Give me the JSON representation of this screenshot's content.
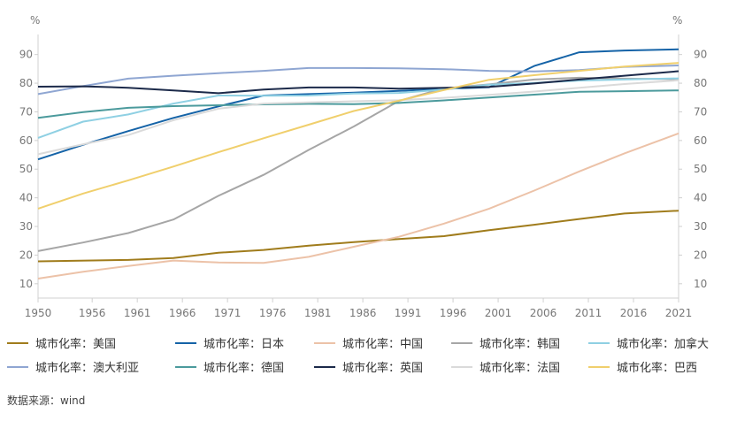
{
  "chart_data": {
    "type": "line",
    "y_unit_left": "%",
    "y_unit_right": "%",
    "ylim": [
      5,
      97
    ],
    "xlim": [
      1950,
      2021
    ],
    "x_ticks": [
      1950,
      1956,
      1961,
      1966,
      1971,
      1976,
      1981,
      1986,
      1991,
      1996,
      2001,
      2006,
      2011,
      2016,
      2021
    ],
    "y_ticks": [
      10,
      20,
      30,
      40,
      50,
      60,
      70,
      80,
      90
    ],
    "grid": false,
    "legend_position": "bottom",
    "source": "数据来源：wind",
    "series": [
      {
        "name": "城市化率：美国",
        "color": "#a07c1c",
        "points": [
          [
            1950,
            17.8
          ],
          [
            1960,
            18.3
          ],
          [
            1965,
            19.0
          ],
          [
            1970,
            20.8
          ],
          [
            1975,
            21.8
          ],
          [
            1980,
            23.3
          ],
          [
            1985,
            24.5
          ],
          [
            1990,
            25.6
          ],
          [
            1995,
            26.6
          ],
          [
            2000,
            28.7
          ],
          [
            2005,
            30.6
          ],
          [
            2010,
            32.6
          ],
          [
            2015,
            34.5
          ],
          [
            2021,
            35.5
          ]
        ]
      },
      {
        "name": "城市化率：日本",
        "color": "#1563a7",
        "points": [
          [
            1950,
            53.4
          ],
          [
            1955,
            58.5
          ],
          [
            1960,
            63.3
          ],
          [
            1965,
            67.9
          ],
          [
            1970,
            71.9
          ],
          [
            1975,
            75.7
          ],
          [
            1980,
            76.2
          ],
          [
            1985,
            76.7
          ],
          [
            1990,
            77.3
          ],
          [
            1995,
            78.0
          ],
          [
            2000,
            78.6
          ],
          [
            2005,
            86.0
          ],
          [
            2010,
            90.8
          ],
          [
            2015,
            91.4
          ],
          [
            2021,
            91.8
          ]
        ]
      },
      {
        "name": "城市化率：中国",
        "color": "#ecc2a8",
        "points": [
          [
            1950,
            11.8
          ],
          [
            1955,
            14.2
          ],
          [
            1960,
            16.2
          ],
          [
            1965,
            18.1
          ],
          [
            1970,
            17.4
          ],
          [
            1975,
            17.3
          ],
          [
            1980,
            19.4
          ],
          [
            1985,
            22.9
          ],
          [
            1990,
            26.4
          ],
          [
            1995,
            31.0
          ],
          [
            2000,
            36.2
          ],
          [
            2005,
            42.5
          ],
          [
            2010,
            49.2
          ],
          [
            2015,
            55.5
          ],
          [
            2021,
            62.5
          ]
        ]
      },
      {
        "name": "城市化率：韩国",
        "color": "#a6a6a6",
        "points": [
          [
            1950,
            21.4
          ],
          [
            1955,
            24.4
          ],
          [
            1960,
            27.7
          ],
          [
            1965,
            32.4
          ],
          [
            1970,
            40.7
          ],
          [
            1975,
            48.0
          ],
          [
            1980,
            56.7
          ],
          [
            1985,
            64.9
          ],
          [
            1990,
            73.8
          ],
          [
            1995,
            78.2
          ],
          [
            2000,
            79.6
          ],
          [
            2005,
            81.3
          ],
          [
            2010,
            81.9
          ],
          [
            2015,
            81.6
          ],
          [
            2021,
            81.4
          ]
        ]
      },
      {
        "name": "城市化率：加拿大",
        "color": "#8fd0e3",
        "points": [
          [
            1950,
            60.9
          ],
          [
            1955,
            66.6
          ],
          [
            1960,
            69.1
          ],
          [
            1965,
            72.9
          ],
          [
            1970,
            75.7
          ],
          [
            1975,
            75.6
          ],
          [
            1980,
            75.7
          ],
          [
            1985,
            76.4
          ],
          [
            1990,
            76.6
          ],
          [
            1995,
            77.8
          ],
          [
            2000,
            79.5
          ],
          [
            2005,
            80.1
          ],
          [
            2010,
            80.9
          ],
          [
            2015,
            81.3
          ],
          [
            2021,
            81.7
          ]
        ]
      },
      {
        "name": "城市化率：澳大利亚",
        "color": "#8fa6d2",
        "points": [
          [
            1950,
            76.2
          ],
          [
            1955,
            79.0
          ],
          [
            1960,
            81.6
          ],
          [
            1965,
            82.6
          ],
          [
            1970,
            83.5
          ],
          [
            1975,
            84.3
          ],
          [
            1980,
            85.3
          ],
          [
            1985,
            85.3
          ],
          [
            1990,
            85.2
          ],
          [
            1995,
            84.9
          ],
          [
            2000,
            84.3
          ],
          [
            2005,
            84.1
          ],
          [
            2010,
            84.6
          ],
          [
            2015,
            85.7
          ],
          [
            2021,
            86.2
          ]
        ]
      },
      {
        "name": "城市化率：德国",
        "color": "#4b9a9c",
        "points": [
          [
            1950,
            67.9
          ],
          [
            1955,
            69.9
          ],
          [
            1960,
            71.4
          ],
          [
            1965,
            72.0
          ],
          [
            1970,
            72.3
          ],
          [
            1975,
            72.6
          ],
          [
            1980,
            72.8
          ],
          [
            1985,
            72.7
          ],
          [
            1990,
            73.1
          ],
          [
            1995,
            74.0
          ],
          [
            2000,
            75.0
          ],
          [
            2005,
            76.0
          ],
          [
            2010,
            77.0
          ],
          [
            2015,
            77.2
          ],
          [
            2021,
            77.5
          ]
        ]
      },
      {
        "name": "城市化率：英国",
        "color": "#1c2a4a",
        "points": [
          [
            1950,
            78.8
          ],
          [
            1955,
            78.9
          ],
          [
            1960,
            78.4
          ],
          [
            1965,
            77.5
          ],
          [
            1970,
            76.5
          ],
          [
            1975,
            77.8
          ],
          [
            1980,
            78.5
          ],
          [
            1985,
            78.5
          ],
          [
            1990,
            78.1
          ],
          [
            1995,
            78.4
          ],
          [
            2000,
            78.7
          ],
          [
            2005,
            79.9
          ],
          [
            2010,
            81.3
          ],
          [
            2015,
            82.6
          ],
          [
            2021,
            84.2
          ]
        ]
      },
      {
        "name": "城市化率：法国",
        "color": "#dadada",
        "points": [
          [
            1950,
            55.2
          ],
          [
            1955,
            58.7
          ],
          [
            1960,
            61.9
          ],
          [
            1965,
            67.1
          ],
          [
            1970,
            71.1
          ],
          [
            1975,
            72.9
          ],
          [
            1980,
            73.3
          ],
          [
            1985,
            73.7
          ],
          [
            1990,
            74.1
          ],
          [
            1995,
            74.9
          ],
          [
            2000,
            75.9
          ],
          [
            2005,
            77.1
          ],
          [
            2010,
            78.4
          ],
          [
            2015,
            79.7
          ],
          [
            2021,
            81.0
          ]
        ]
      },
      {
        "name": "城市化率：巴西",
        "color": "#f0cf6c",
        "points": [
          [
            1950,
            36.2
          ],
          [
            1955,
            41.5
          ],
          [
            1960,
            46.1
          ],
          [
            1965,
            50.9
          ],
          [
            1970,
            55.9
          ],
          [
            1975,
            60.8
          ],
          [
            1980,
            65.5
          ],
          [
            1985,
            70.3
          ],
          [
            1990,
            73.9
          ],
          [
            1995,
            77.6
          ],
          [
            2000,
            81.2
          ],
          [
            2005,
            82.8
          ],
          [
            2010,
            84.3
          ],
          [
            2015,
            85.8
          ],
          [
            2021,
            87.1
          ]
        ]
      }
    ]
  }
}
